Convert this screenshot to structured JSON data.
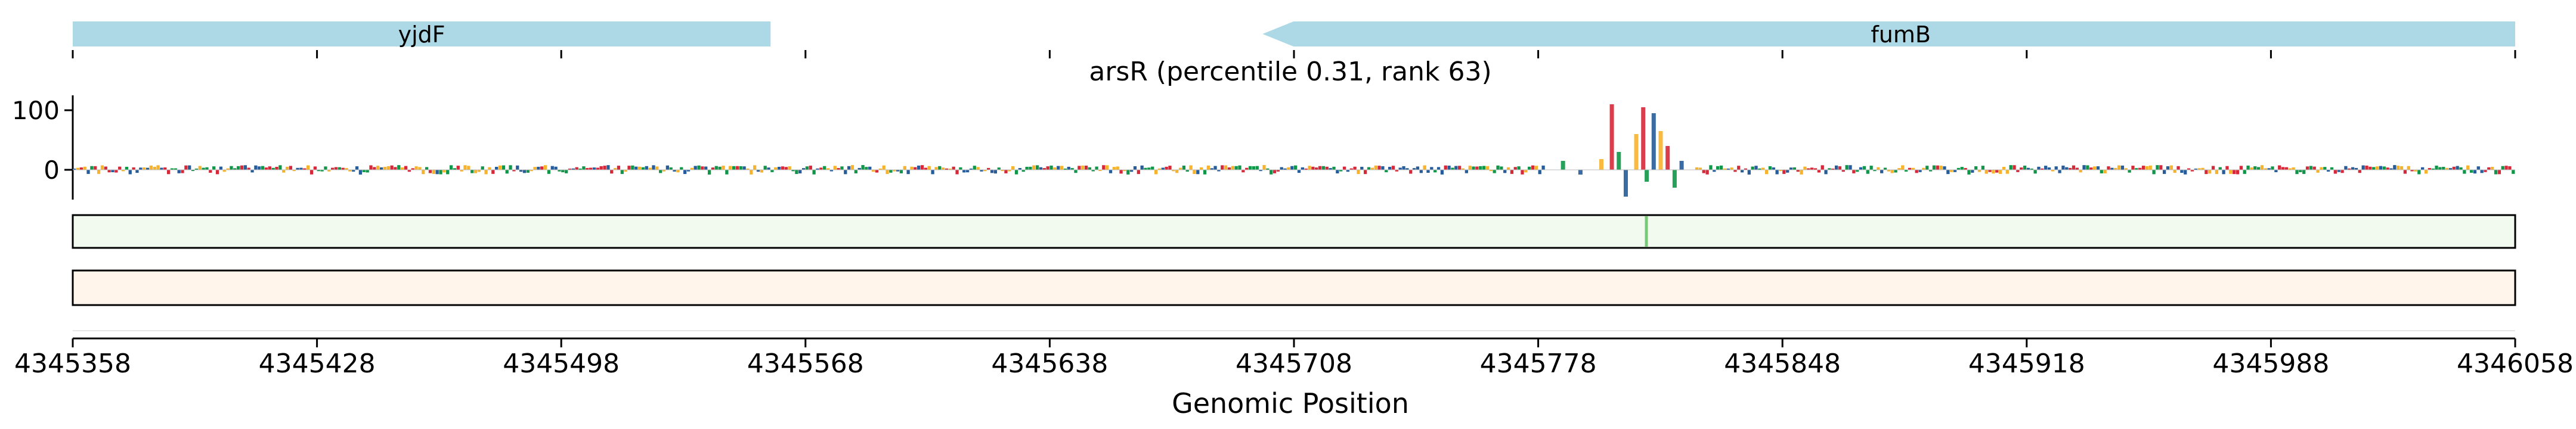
{
  "chart_data": {
    "type": "genome-track",
    "title": "arsR (percentile 0.31, rank 63)",
    "xlabel": "Genomic Position",
    "xlim": [
      4345358,
      4346058
    ],
    "xticks": [
      "4345358",
      "4345428",
      "4345498",
      "4345568",
      "4345638",
      "4345708",
      "4345778",
      "4345848",
      "4345918",
      "4345988",
      "4346058"
    ],
    "ylim": [
      -50,
      125
    ],
    "yticks": [
      "100",
      "0"
    ],
    "genes": [
      {
        "name": "yjdF",
        "start": 4345358,
        "end": 4345558,
        "strand": "+"
      },
      {
        "name": "fumB",
        "start": 4345699,
        "end": 4346058,
        "strand": "-"
      }
    ],
    "peak_region": [
      4345780,
      4345822
    ],
    "peak_values": [
      {
        "x": 4345785,
        "y": 15
      },
      {
        "x": 4345790,
        "y": -8
      },
      {
        "x": 4345796,
        "y": 18
      },
      {
        "x": 4345799,
        "y": 110
      },
      {
        "x": 4345801,
        "y": 30
      },
      {
        "x": 4345803,
        "y": -45
      },
      {
        "x": 4345806,
        "y": 60
      },
      {
        "x": 4345808,
        "y": 105
      },
      {
        "x": 4345809,
        "y": -20
      },
      {
        "x": 4345811,
        "y": 95
      },
      {
        "x": 4345813,
        "y": 65
      },
      {
        "x": 4345815,
        "y": 40
      },
      {
        "x": 4345817,
        "y": -30
      },
      {
        "x": 4345819,
        "y": 15
      }
    ],
    "highlight_position": 4345809,
    "colors": {
      "gene_arrow": "#add8e6",
      "logo_A": "#109648",
      "logo_C": "#255c99",
      "logo_G": "#f7b32b",
      "logo_T": "#d62839",
      "track_green": "#f2faef",
      "track_green_line": "#78c878",
      "track_orange": "#fff5ea"
    }
  }
}
